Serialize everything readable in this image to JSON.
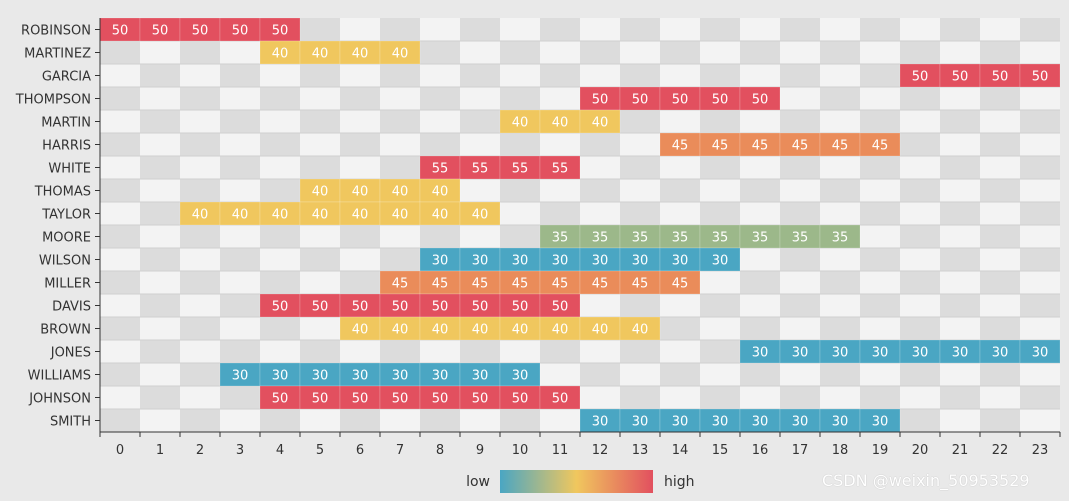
{
  "chart_data": {
    "type": "heatmap",
    "x": [
      "0",
      "1",
      "2",
      "3",
      "4",
      "5",
      "6",
      "7",
      "8",
      "9",
      "10",
      "11",
      "12",
      "13",
      "14",
      "15",
      "16",
      "17",
      "18",
      "19",
      "20",
      "21",
      "22",
      "23"
    ],
    "y": [
      "ROBINSON",
      "MARTINEZ",
      "GARCIA",
      "THOMPSON",
      "MARTIN",
      "HARRIS",
      "WHITE",
      "THOMAS",
      "TAYLOR",
      "MOORE",
      "WILSON",
      "MILLER",
      "DAVIS",
      "BROWN",
      "JONES",
      "WILLIAMS",
      "JOHNSON",
      "SMITH"
    ],
    "rows": [
      {
        "name": "ROBINSON",
        "start": 0,
        "end": 4,
        "value": 50
      },
      {
        "name": "MARTINEZ",
        "start": 4,
        "end": 7,
        "value": 40
      },
      {
        "name": "GARCIA",
        "start": 20,
        "end": 23,
        "value": 50
      },
      {
        "name": "THOMPSON",
        "start": 12,
        "end": 16,
        "value": 50
      },
      {
        "name": "MARTIN",
        "start": 10,
        "end": 12,
        "value": 40
      },
      {
        "name": "HARRIS",
        "start": 14,
        "end": 19,
        "value": 45
      },
      {
        "name": "WHITE",
        "start": 8,
        "end": 11,
        "value": 55
      },
      {
        "name": "THOMAS",
        "start": 5,
        "end": 8,
        "value": 40
      },
      {
        "name": "TAYLOR",
        "start": 2,
        "end": 9,
        "value": 40
      },
      {
        "name": "MOORE",
        "start": 11,
        "end": 18,
        "value": 35
      },
      {
        "name": "WILSON",
        "start": 8,
        "end": 15,
        "value": 30
      },
      {
        "name": "MILLER",
        "start": 7,
        "end": 14,
        "value": 45
      },
      {
        "name": "DAVIS",
        "start": 4,
        "end": 11,
        "value": 50
      },
      {
        "name": "BROWN",
        "start": 6,
        "end": 13,
        "value": 40
      },
      {
        "name": "JONES",
        "start": 16,
        "end": 23,
        "value": 30
      },
      {
        "name": "WILLIAMS",
        "start": 3,
        "end": 10,
        "value": 30
      },
      {
        "name": "JOHNSON",
        "start": 4,
        "end": 11,
        "value": 50
      },
      {
        "name": "SMITH",
        "start": 12,
        "end": 19,
        "value": 30
      }
    ],
    "colors": {
      "30": "#4aa6c3",
      "35": "#9cb88a",
      "40": "#f0c75e",
      "45": "#ea8c5a",
      "50": "#e2505f",
      "55": "#e2505f"
    },
    "grid_colors": [
      "#f3f3f3",
      "#dcdcdc"
    ],
    "visual_map": {
      "low_label": "low",
      "high_label": "high",
      "gradient": [
        "#4aa6c3",
        "#f0c75e",
        "#e2505f"
      ]
    }
  },
  "watermark": "CSDN @weixin_50953529"
}
